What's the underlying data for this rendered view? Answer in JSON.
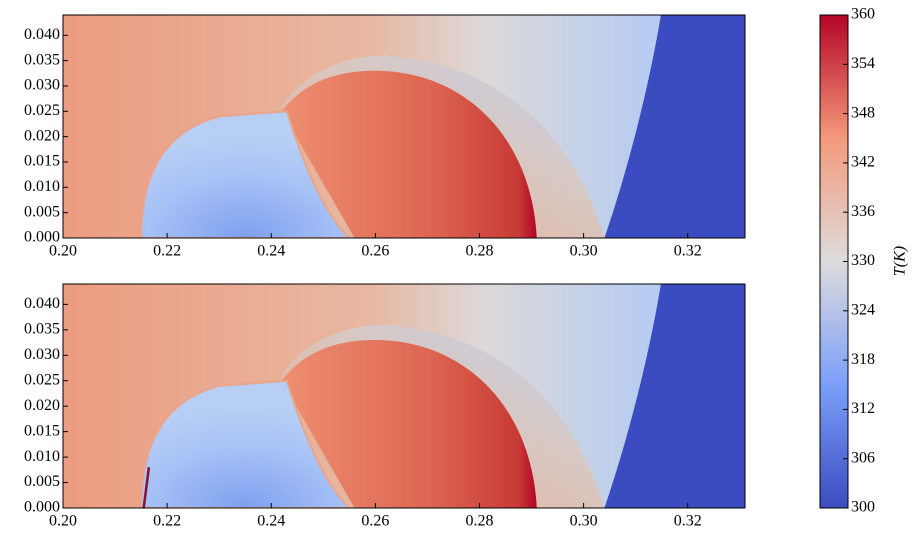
{
  "chart_data": [
    {
      "type": "heatmap",
      "xlim": [
        0.2,
        0.331
      ],
      "ylim": [
        0,
        0.044
      ],
      "xticks": [
        {
          "value": 0.2,
          "label": "0.20"
        },
        0.22,
        0.24,
        0.26,
        0.28,
        {
          "value": 0.3,
          "label": "0.30"
        },
        0.32
      ],
      "yticks": [
        {
          "value": 0,
          "label": "0.000"
        },
        0.005,
        {
          "value": 0.01,
          "label": "0.010"
        },
        0.015,
        {
          "value": 0.02,
          "label": "0.020"
        },
        0.025,
        {
          "value": 0.03,
          "label": "0.030"
        },
        0.035,
        {
          "value": 0.04,
          "label": "0.040"
        }
      ]
    },
    {
      "type": "heatmap",
      "xlim": [
        0.2,
        0.331
      ],
      "ylim": [
        0,
        0.044
      ],
      "xticks": [
        {
          "value": 0.2,
          "label": "0.20"
        },
        0.22,
        0.24,
        0.26,
        0.28,
        {
          "value": 0.3,
          "label": "0.30"
        },
        0.32
      ],
      "yticks": [
        {
          "value": 0,
          "label": "0.000"
        },
        0.005,
        {
          "value": 0.01,
          "label": "0.010"
        },
        0.015,
        {
          "value": 0.02,
          "label": "0.020"
        },
        0.025,
        {
          "value": 0.03,
          "label": "0.030"
        },
        0.035,
        {
          "value": 0.04,
          "label": "0.040"
        }
      ]
    }
  ],
  "colorbar": {
    "label": "T(K)",
    "colormap": "coolwarm",
    "lim": [
      300,
      360
    ],
    "ticks": [
      300,
      306,
      312,
      318,
      324,
      330,
      336,
      342,
      348,
      354,
      360
    ]
  }
}
